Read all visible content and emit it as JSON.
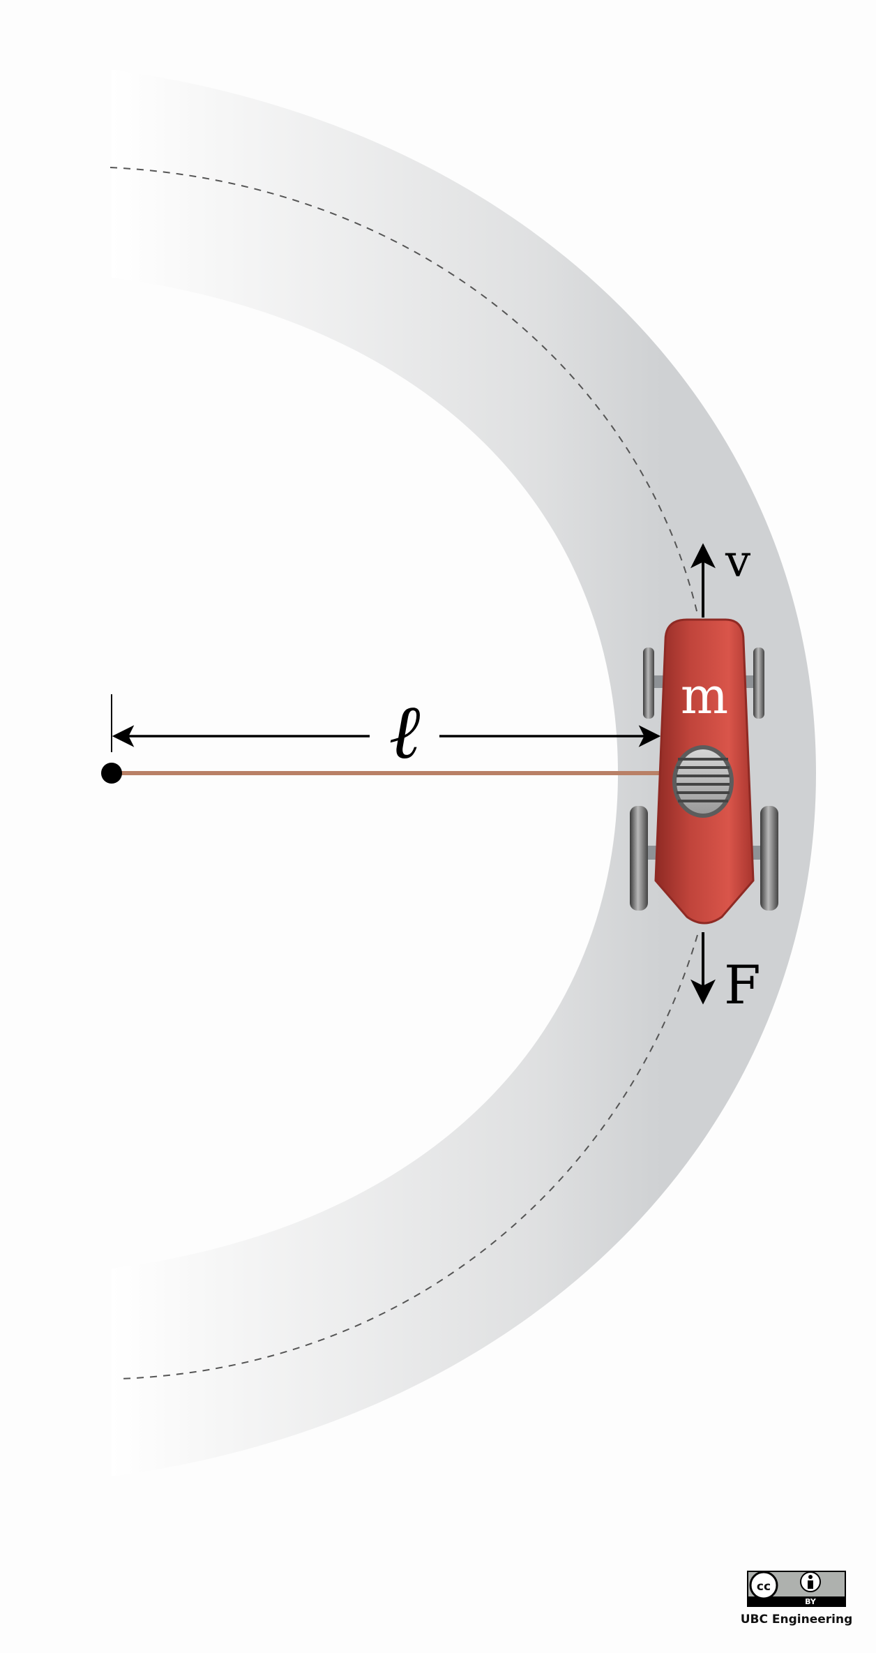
{
  "labels": {
    "length": "ℓ",
    "mass": "m",
    "velocity": "v",
    "force": "F"
  },
  "license": {
    "cc": "cc",
    "by": "BY",
    "attribution": "UBC Engineering"
  },
  "colors": {
    "track": "#cfd1d3",
    "car_body": "#c4423a",
    "string": "#b98066",
    "arrow": "#000000"
  }
}
